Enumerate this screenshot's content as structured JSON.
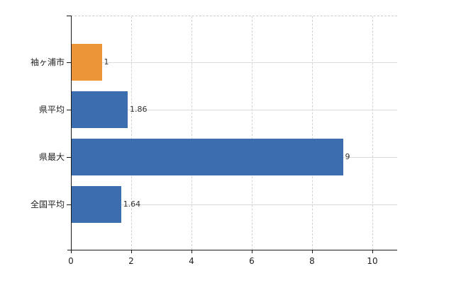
{
  "chart_data": {
    "type": "bar",
    "orientation": "horizontal",
    "title": "",
    "xlabel": "",
    "ylabel": "",
    "categories": [
      "袖ヶ浦市",
      "県平均",
      "県最大",
      "全国平均"
    ],
    "values": [
      1,
      1.86,
      9,
      1.64
    ],
    "value_labels": [
      "1",
      "1.86",
      "9",
      "1.64"
    ],
    "bar_colors": [
      "#EC9438",
      "#3C6DAF",
      "#3C6DAF",
      "#3C6DAF"
    ],
    "xlim": [
      0,
      10.8
    ],
    "xticks": [
      0,
      2,
      4,
      6,
      8,
      10
    ],
    "xtick_labels": [
      "0",
      "2",
      "4",
      "6",
      "8",
      "10"
    ],
    "legend": "none",
    "grid": {
      "vertical_gridlines": "dashed",
      "horizontal_gridlines_at_category_centers": true,
      "top_border": "dashed"
    },
    "colors": {
      "grid": "#d2d2d2",
      "axis": "#1a1a1a",
      "category_text": "#222222",
      "value_text": "#333333"
    }
  }
}
